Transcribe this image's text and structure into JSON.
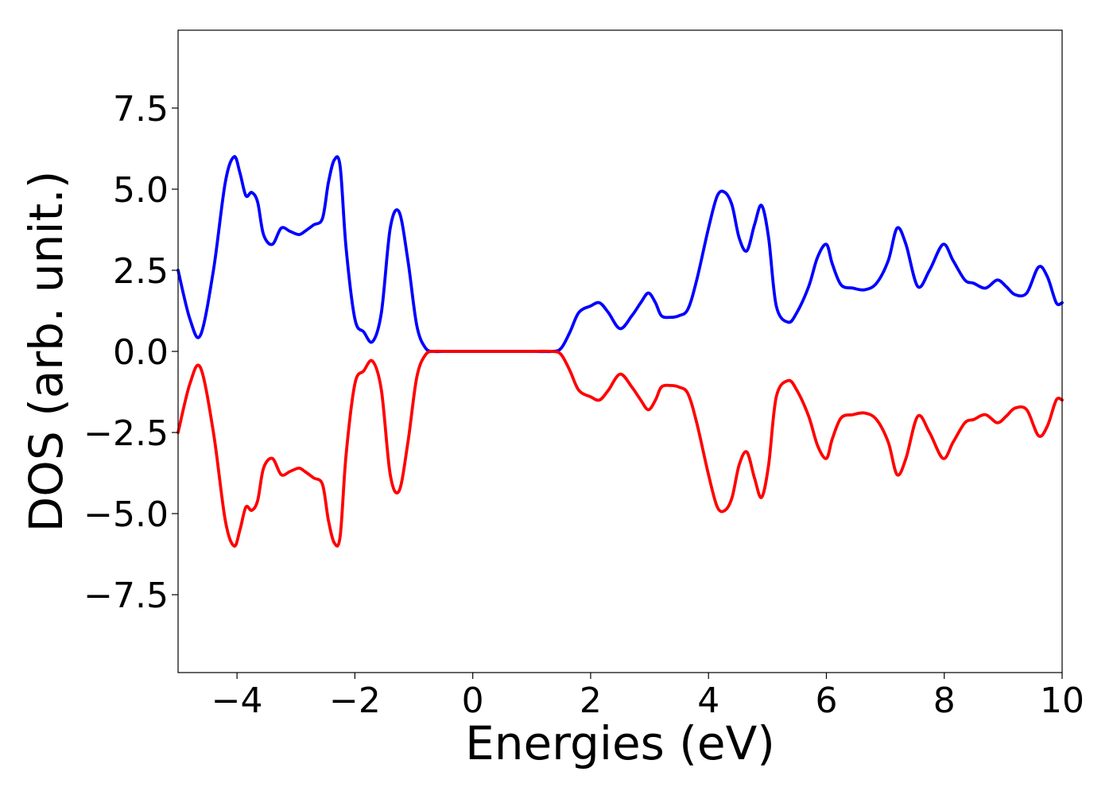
{
  "chart_data": {
    "type": "line",
    "title": "",
    "xlabel": "Energies (eV)",
    "ylabel": "DOS (arb. unit.)",
    "xlim": [
      -5,
      10
    ],
    "ylim": [
      -9.9,
      9.9
    ],
    "x_ticks": [
      {
        "value": -4,
        "label": "−4"
      },
      {
        "value": -2,
        "label": "−2"
      },
      {
        "value": 0,
        "label": "0"
      },
      {
        "value": 2,
        "label": "2"
      },
      {
        "value": 4,
        "label": "4"
      },
      {
        "value": 6,
        "label": "6"
      },
      {
        "value": 8,
        "label": "8"
      },
      {
        "value": 10,
        "label": "10"
      }
    ],
    "y_ticks": [
      {
        "value": -7.5,
        "label": "−7.5"
      },
      {
        "value": -5.0,
        "label": "−5.0"
      },
      {
        "value": -2.5,
        "label": "−2.5"
      },
      {
        "value": 0.0,
        "label": "0.0"
      },
      {
        "value": 2.5,
        "label": "2.5"
      },
      {
        "value": 5.0,
        "label": "5.0"
      },
      {
        "value": 7.5,
        "label": "7.5"
      }
    ],
    "grid": false,
    "legend": "none",
    "series": [
      {
        "color": "#0000ff",
        "x": [
          -5.0,
          -4.8,
          -4.62,
          -4.4,
          -4.2,
          -4.05,
          -3.95,
          -3.85,
          -3.75,
          -3.65,
          -3.55,
          -3.4,
          -3.25,
          -3.1,
          -2.95,
          -2.85,
          -2.7,
          -2.55,
          -2.45,
          -2.35,
          -2.25,
          -2.15,
          -2.0,
          -1.85,
          -1.7,
          -1.55,
          -1.4,
          -1.25,
          -1.1,
          -0.95,
          -0.8,
          -0.65,
          -0.5,
          0.0,
          0.5,
          1.0,
          1.35,
          1.5,
          1.65,
          1.8,
          2.0,
          2.15,
          2.3,
          2.5,
          2.7,
          2.85,
          2.98,
          3.1,
          3.2,
          3.35,
          3.5,
          3.65,
          3.8,
          4.0,
          4.15,
          4.28,
          4.4,
          4.52,
          4.65,
          4.78,
          4.9,
          5.02,
          5.15,
          5.35,
          5.5,
          5.7,
          5.85,
          6.0,
          6.1,
          6.25,
          6.45,
          6.65,
          6.85,
          7.05,
          7.2,
          7.35,
          7.55,
          7.75,
          7.98,
          8.15,
          8.35,
          8.5,
          8.7,
          8.9,
          9.05,
          9.2,
          9.4,
          9.6,
          9.75,
          9.9,
          10.0
        ],
        "y": [
          2.5,
          1.0,
          0.5,
          2.5,
          5.2,
          6.0,
          5.5,
          4.8,
          4.9,
          4.6,
          3.6,
          3.3,
          3.8,
          3.7,
          3.6,
          3.7,
          3.9,
          4.1,
          5.2,
          5.9,
          5.7,
          3.2,
          1.0,
          0.6,
          0.3,
          1.2,
          3.8,
          4.3,
          2.8,
          0.8,
          0.1,
          0.0,
          0.0,
          0.0,
          0.0,
          0.0,
          0.0,
          0.1,
          0.6,
          1.2,
          1.4,
          1.5,
          1.2,
          0.7,
          1.1,
          1.5,
          1.8,
          1.5,
          1.1,
          1.05,
          1.1,
          1.3,
          2.2,
          3.8,
          4.8,
          4.9,
          4.5,
          3.5,
          3.1,
          3.9,
          4.5,
          3.5,
          1.4,
          0.9,
          1.2,
          2.0,
          2.9,
          3.3,
          2.7,
          2.05,
          1.95,
          1.9,
          2.1,
          2.8,
          3.8,
          3.3,
          2.0,
          2.5,
          3.3,
          2.8,
          2.2,
          2.1,
          1.95,
          2.2,
          2.0,
          1.75,
          1.8,
          2.6,
          2.3,
          1.5,
          1.5
        ]
      },
      {
        "color": "#ff0000",
        "x": [
          -5.0,
          -4.8,
          -4.62,
          -4.4,
          -4.2,
          -4.05,
          -3.95,
          -3.85,
          -3.75,
          -3.65,
          -3.55,
          -3.4,
          -3.25,
          -3.1,
          -2.95,
          -2.85,
          -2.7,
          -2.55,
          -2.45,
          -2.35,
          -2.25,
          -2.15,
          -2.0,
          -1.85,
          -1.7,
          -1.55,
          -1.4,
          -1.25,
          -1.1,
          -0.95,
          -0.8,
          -0.65,
          -0.5,
          0.0,
          0.5,
          1.0,
          1.35,
          1.5,
          1.65,
          1.8,
          2.0,
          2.15,
          2.3,
          2.5,
          2.7,
          2.85,
          2.98,
          3.1,
          3.2,
          3.35,
          3.5,
          3.65,
          3.8,
          4.0,
          4.15,
          4.28,
          4.4,
          4.52,
          4.65,
          4.78,
          4.9,
          5.02,
          5.15,
          5.35,
          5.5,
          5.7,
          5.85,
          6.0,
          6.1,
          6.25,
          6.45,
          6.65,
          6.85,
          7.05,
          7.2,
          7.35,
          7.55,
          7.75,
          7.98,
          8.15,
          8.35,
          8.5,
          8.7,
          8.9,
          9.05,
          9.2,
          9.4,
          9.6,
          9.75,
          9.9,
          10.0
        ],
        "y": [
          -2.5,
          -1.0,
          -0.5,
          -2.5,
          -5.2,
          -6.0,
          -5.5,
          -4.8,
          -4.9,
          -4.6,
          -3.6,
          -3.3,
          -3.8,
          -3.7,
          -3.6,
          -3.7,
          -3.9,
          -4.1,
          -5.2,
          -5.9,
          -5.7,
          -3.2,
          -1.0,
          -0.6,
          -0.3,
          -1.2,
          -3.8,
          -4.3,
          -2.8,
          -0.8,
          -0.1,
          0.0,
          0.0,
          0.0,
          0.0,
          0.0,
          0.0,
          -0.1,
          -0.6,
          -1.2,
          -1.4,
          -1.5,
          -1.2,
          -0.7,
          -1.1,
          -1.5,
          -1.8,
          -1.5,
          -1.1,
          -1.05,
          -1.1,
          -1.3,
          -2.2,
          -3.8,
          -4.8,
          -4.9,
          -4.5,
          -3.5,
          -3.1,
          -3.9,
          -4.5,
          -3.5,
          -1.4,
          -0.9,
          -1.2,
          -2.0,
          -2.9,
          -3.3,
          -2.7,
          -2.05,
          -1.95,
          -1.9,
          -2.1,
          -2.8,
          -3.8,
          -3.3,
          -2.0,
          -2.5,
          -3.3,
          -2.8,
          -2.2,
          -2.1,
          -1.95,
          -2.2,
          -2.0,
          -1.75,
          -1.8,
          -2.6,
          -2.3,
          -1.5,
          -1.5
        ]
      }
    ]
  }
}
